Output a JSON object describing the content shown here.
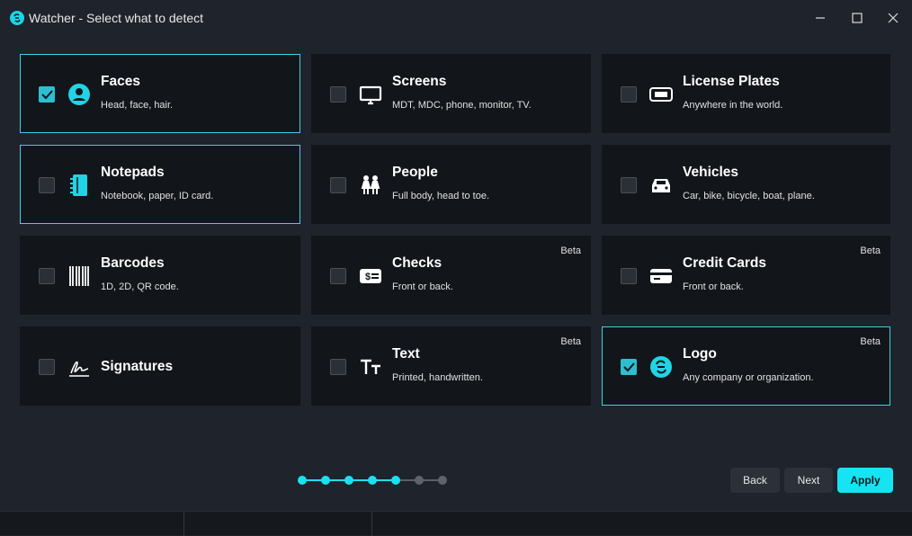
{
  "window": {
    "title": "Watcher - Select what to detect"
  },
  "cards": [
    {
      "title": "Faces",
      "description": "Head, face, hair.",
      "checked": true
    },
    {
      "title": "Screens",
      "description": "MDT, MDC, phone, monitor, TV.",
      "checked": false
    },
    {
      "title": "License Plates",
      "description": "Anywhere in the world.",
      "checked": false
    },
    {
      "title": "Notepads",
      "description": "Notebook, paper, ID card.",
      "checked": false,
      "focused": true
    },
    {
      "title": "People",
      "description": "Full body, head to toe.",
      "checked": false
    },
    {
      "title": "Vehicles",
      "description": "Car, bike, bicycle, boat, plane.",
      "checked": false
    },
    {
      "title": "Barcodes",
      "description": "1D, 2D, QR code.",
      "checked": false
    },
    {
      "title": "Checks",
      "description": "Front or back.",
      "checked": false,
      "badge": "Beta"
    },
    {
      "title": "Credit Cards",
      "description": "Front or back.",
      "checked": false,
      "badge": "Beta"
    },
    {
      "title": "Signatures",
      "checked": false
    },
    {
      "title": "Text",
      "description": "Printed, handwritten.",
      "checked": false,
      "badge": "Beta"
    },
    {
      "title": "Logo",
      "description": "Any company or organization.",
      "checked": true,
      "badge": "Beta"
    }
  ],
  "progress": {
    "steps": 7,
    "completed": 5
  },
  "buttons": {
    "back": "Back",
    "next": "Next",
    "apply": "Apply"
  }
}
